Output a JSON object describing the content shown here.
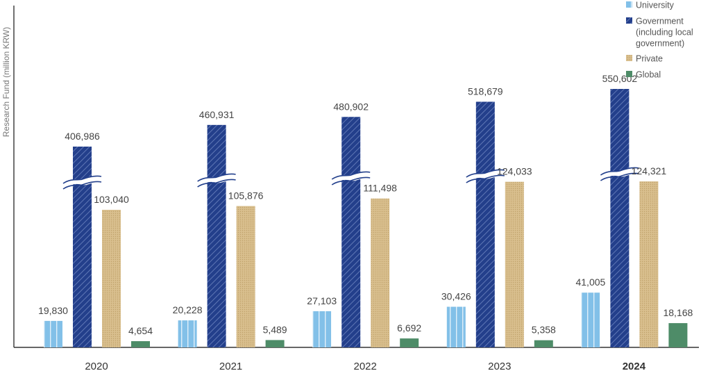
{
  "chart_data": {
    "type": "bar",
    "ylabel": "Research Fund (million KRW)",
    "categories": [
      "2020",
      "2021",
      "2022",
      "2023",
      "2024"
    ],
    "highlight_category": "2024",
    "axis_break": true,
    "series": [
      {
        "name": "University",
        "color": "#7fbfe6",
        "pattern": "vertical-stripes",
        "values": [
          19830,
          20228,
          27103,
          30426,
          41005
        ],
        "labels": [
          "19,830",
          "20,228",
          "27,103",
          "30,426",
          "41,005"
        ]
      },
      {
        "name": "Government (including local government)",
        "name_lines": [
          "Government",
          "(including local",
          "government)"
        ],
        "color": "#23408c",
        "pattern": "diagonal-hatch",
        "values": [
          406986,
          460931,
          480902,
          518679,
          550602
        ],
        "labels": [
          "406,986",
          "460,931",
          "480,902",
          "518,679",
          "550,602"
        ]
      },
      {
        "name": "Private",
        "color": "#d8be8c",
        "pattern": "dotted",
        "values": [
          103040,
          105876,
          111498,
          124033,
          124321
        ],
        "labels": [
          "103,040",
          "105,876",
          "111,498",
          "124,033",
          "124,321"
        ]
      },
      {
        "name": "Global",
        "color": "#4e8c68",
        "pattern": "solid",
        "values": [
          4654,
          5489,
          6692,
          5358,
          18168
        ],
        "labels": [
          "4,654",
          "5,489",
          "6,692",
          "5,358",
          "18,168"
        ]
      }
    ]
  }
}
